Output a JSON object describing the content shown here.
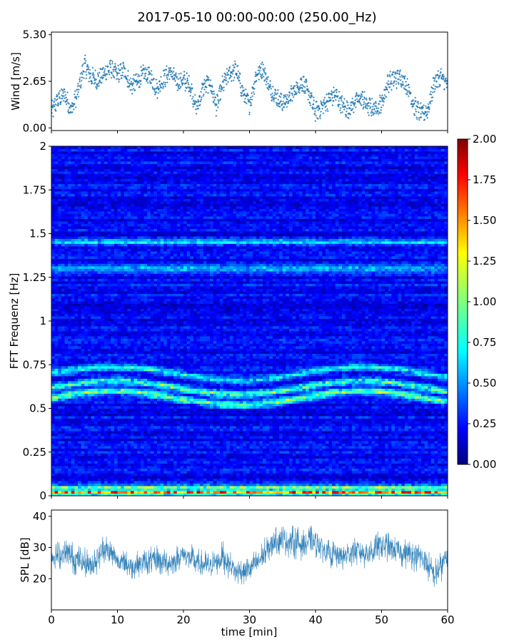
{
  "title": "2017-05-10 00:00-00:00 (250.00_Hz)",
  "chart_data": [
    {
      "type": "scatter",
      "panel": "wind",
      "ylabel": "Wind [m/s]",
      "xlim": [
        0,
        60
      ],
      "ylim": [
        -0.15,
        5.45
      ],
      "yticks": [
        0.0,
        2.65,
        5.3
      ],
      "ytick_labels": [
        "0.00",
        "2.65",
        "5.30"
      ],
      "marker": "+",
      "color": "#1f77b4",
      "x": [
        0,
        1,
        2,
        3,
        4,
        5,
        6,
        7,
        8,
        9,
        10,
        11,
        12,
        13,
        14,
        15,
        16,
        17,
        18,
        19,
        20,
        21,
        22,
        23,
        24,
        25,
        26,
        27,
        28,
        29,
        30,
        31,
        32,
        33,
        34,
        35,
        36,
        37,
        38,
        39,
        40,
        41,
        42,
        43,
        44,
        45,
        46,
        47,
        48,
        49,
        50,
        51,
        52,
        53,
        54,
        55,
        56,
        57,
        58,
        59,
        60
      ],
      "y": [
        0.9,
        1.6,
        1.9,
        1.0,
        2.0,
        3.6,
        2.9,
        2.7,
        3.1,
        3.4,
        3.0,
        3.3,
        2.4,
        2.6,
        3.1,
        2.9,
        2.2,
        2.8,
        3.2,
        2.6,
        2.7,
        2.4,
        1.1,
        2.3,
        2.6,
        1.2,
        2.5,
        3.1,
        3.3,
        2.0,
        1.3,
        3.0,
        3.4,
        2.3,
        1.8,
        1.4,
        1.7,
        2.2,
        2.6,
        1.9,
        0.9,
        1.2,
        1.6,
        1.9,
        1.3,
        1.0,
        1.5,
        1.7,
        1.2,
        1.1,
        1.4,
        2.6,
        2.8,
        2.9,
        2.3,
        1.2,
        0.8,
        1.0,
        2.6,
        2.9,
        2.4
      ]
    },
    {
      "type": "heatmap",
      "panel": "spectrogram",
      "ylabel": "FFT Frequenz [Hz]",
      "xlim": [
        0,
        60
      ],
      "ylim": [
        0,
        2
      ],
      "yticks": [
        0,
        0.25,
        0.5,
        0.75,
        1,
        1.25,
        1.5,
        1.75,
        2
      ],
      "ytick_labels": [
        "0",
        "0.25",
        "0.5",
        "0.75",
        "1",
        "1.25",
        "1.5",
        "1.75",
        "2"
      ],
      "colormap": "jet",
      "clim": [
        0,
        2
      ],
      "colorbar_ticks": [
        "0.00",
        "0.25",
        "0.50",
        "0.75",
        "1.00",
        "1.25",
        "1.50",
        "1.75",
        "2.00"
      ],
      "bands": [
        {
          "freq": 0.02,
          "level": 1.6
        },
        {
          "freq": 0.05,
          "level": 0.9
        },
        {
          "freq": 0.56,
          "level": 0.85
        },
        {
          "freq": 0.62,
          "level": 0.8
        },
        {
          "freq": 0.7,
          "level": 0.6
        },
        {
          "freq": 1.3,
          "level": 0.45
        },
        {
          "freq": 1.45,
          "level": 0.45
        }
      ],
      "background_level": 0.25
    },
    {
      "type": "line",
      "panel": "spl",
      "ylabel": "SPL [dB]",
      "xlabel": "time [min]",
      "xlim": [
        0,
        60
      ],
      "ylim": [
        10,
        42
      ],
      "yticks": [
        20,
        30,
        40
      ],
      "ytick_labels": [
        "20",
        "30",
        "40"
      ],
      "xticks": [
        0,
        10,
        20,
        30,
        40,
        50,
        60
      ],
      "xtick_labels": [
        "0",
        "10",
        "20",
        "30",
        "40",
        "50",
        "60"
      ],
      "color": "#1f77b4",
      "x": [
        0,
        2,
        4,
        6,
        8,
        10,
        12,
        14,
        16,
        18,
        20,
        22,
        24,
        26,
        28,
        30,
        32,
        34,
        36,
        38,
        40,
        42,
        44,
        46,
        48,
        50,
        52,
        54,
        56,
        58,
        60
      ],
      "y": [
        27,
        28,
        26,
        24,
        30,
        26,
        24,
        25,
        26,
        25,
        28,
        25,
        24,
        27,
        22,
        23,
        27,
        33,
        32,
        31,
        32,
        28,
        27,
        29,
        28,
        31,
        29,
        28,
        27,
        21,
        27
      ],
      "spread": [
        5,
        6,
        6,
        6,
        6,
        5,
        5,
        5,
        6,
        5,
        5,
        6,
        5,
        6,
        5,
        5,
        6,
        6,
        6,
        6,
        6,
        5,
        6,
        6,
        6,
        6,
        5,
        6,
        6,
        6,
        6
      ]
    }
  ]
}
